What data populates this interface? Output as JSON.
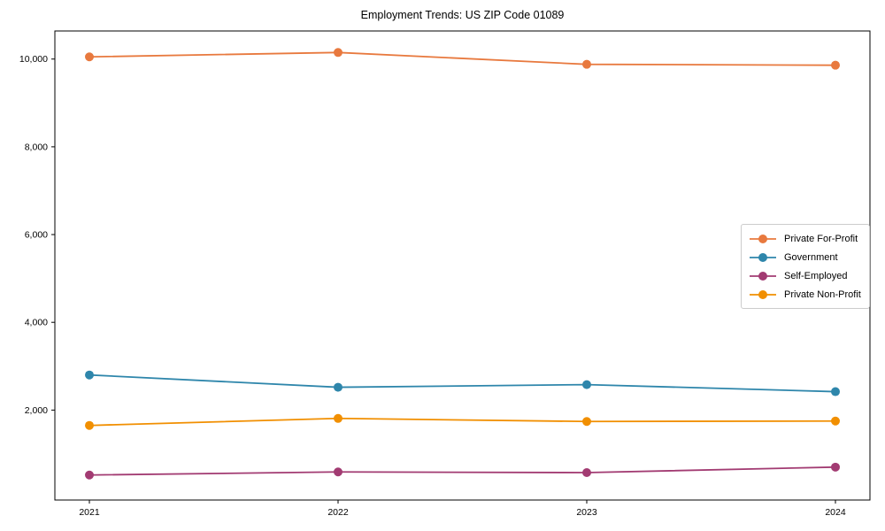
{
  "figure": {
    "background": "#ffffff",
    "axes_frame_color": "#000000"
  },
  "chart_data": {
    "type": "line",
    "title": "Employment Trends: US ZIP Code 01089",
    "x": [
      "2021",
      "2022",
      "2023",
      "2024"
    ],
    "series": [
      {
        "name": "Private For-Profit",
        "color": "#E8793E",
        "values": [
          10050,
          10150,
          9880,
          9860
        ]
      },
      {
        "name": "Government",
        "color": "#2E86AB",
        "values": [
          2800,
          2520,
          2580,
          2420
        ]
      },
      {
        "name": "Self-Employed",
        "color": "#A23B72",
        "values": [
          520,
          590,
          575,
          700
        ]
      },
      {
        "name": "Private Non-Profit",
        "color": "#F18F01",
        "values": [
          1650,
          1810,
          1740,
          1750
        ]
      }
    ],
    "yticks": [
      {
        "value": 2000,
        "label": "2,000"
      },
      {
        "value": 4000,
        "label": "4,000"
      },
      {
        "value": 6000,
        "label": "6,000"
      },
      {
        "value": 8000,
        "label": "8,000"
      },
      {
        "value": 10000,
        "label": "10,000"
      }
    ],
    "ylim": [
      -50,
      10640
    ],
    "grid": false,
    "legend_position": "right-center",
    "marker": "circle",
    "xlabel": "",
    "ylabel": ""
  }
}
